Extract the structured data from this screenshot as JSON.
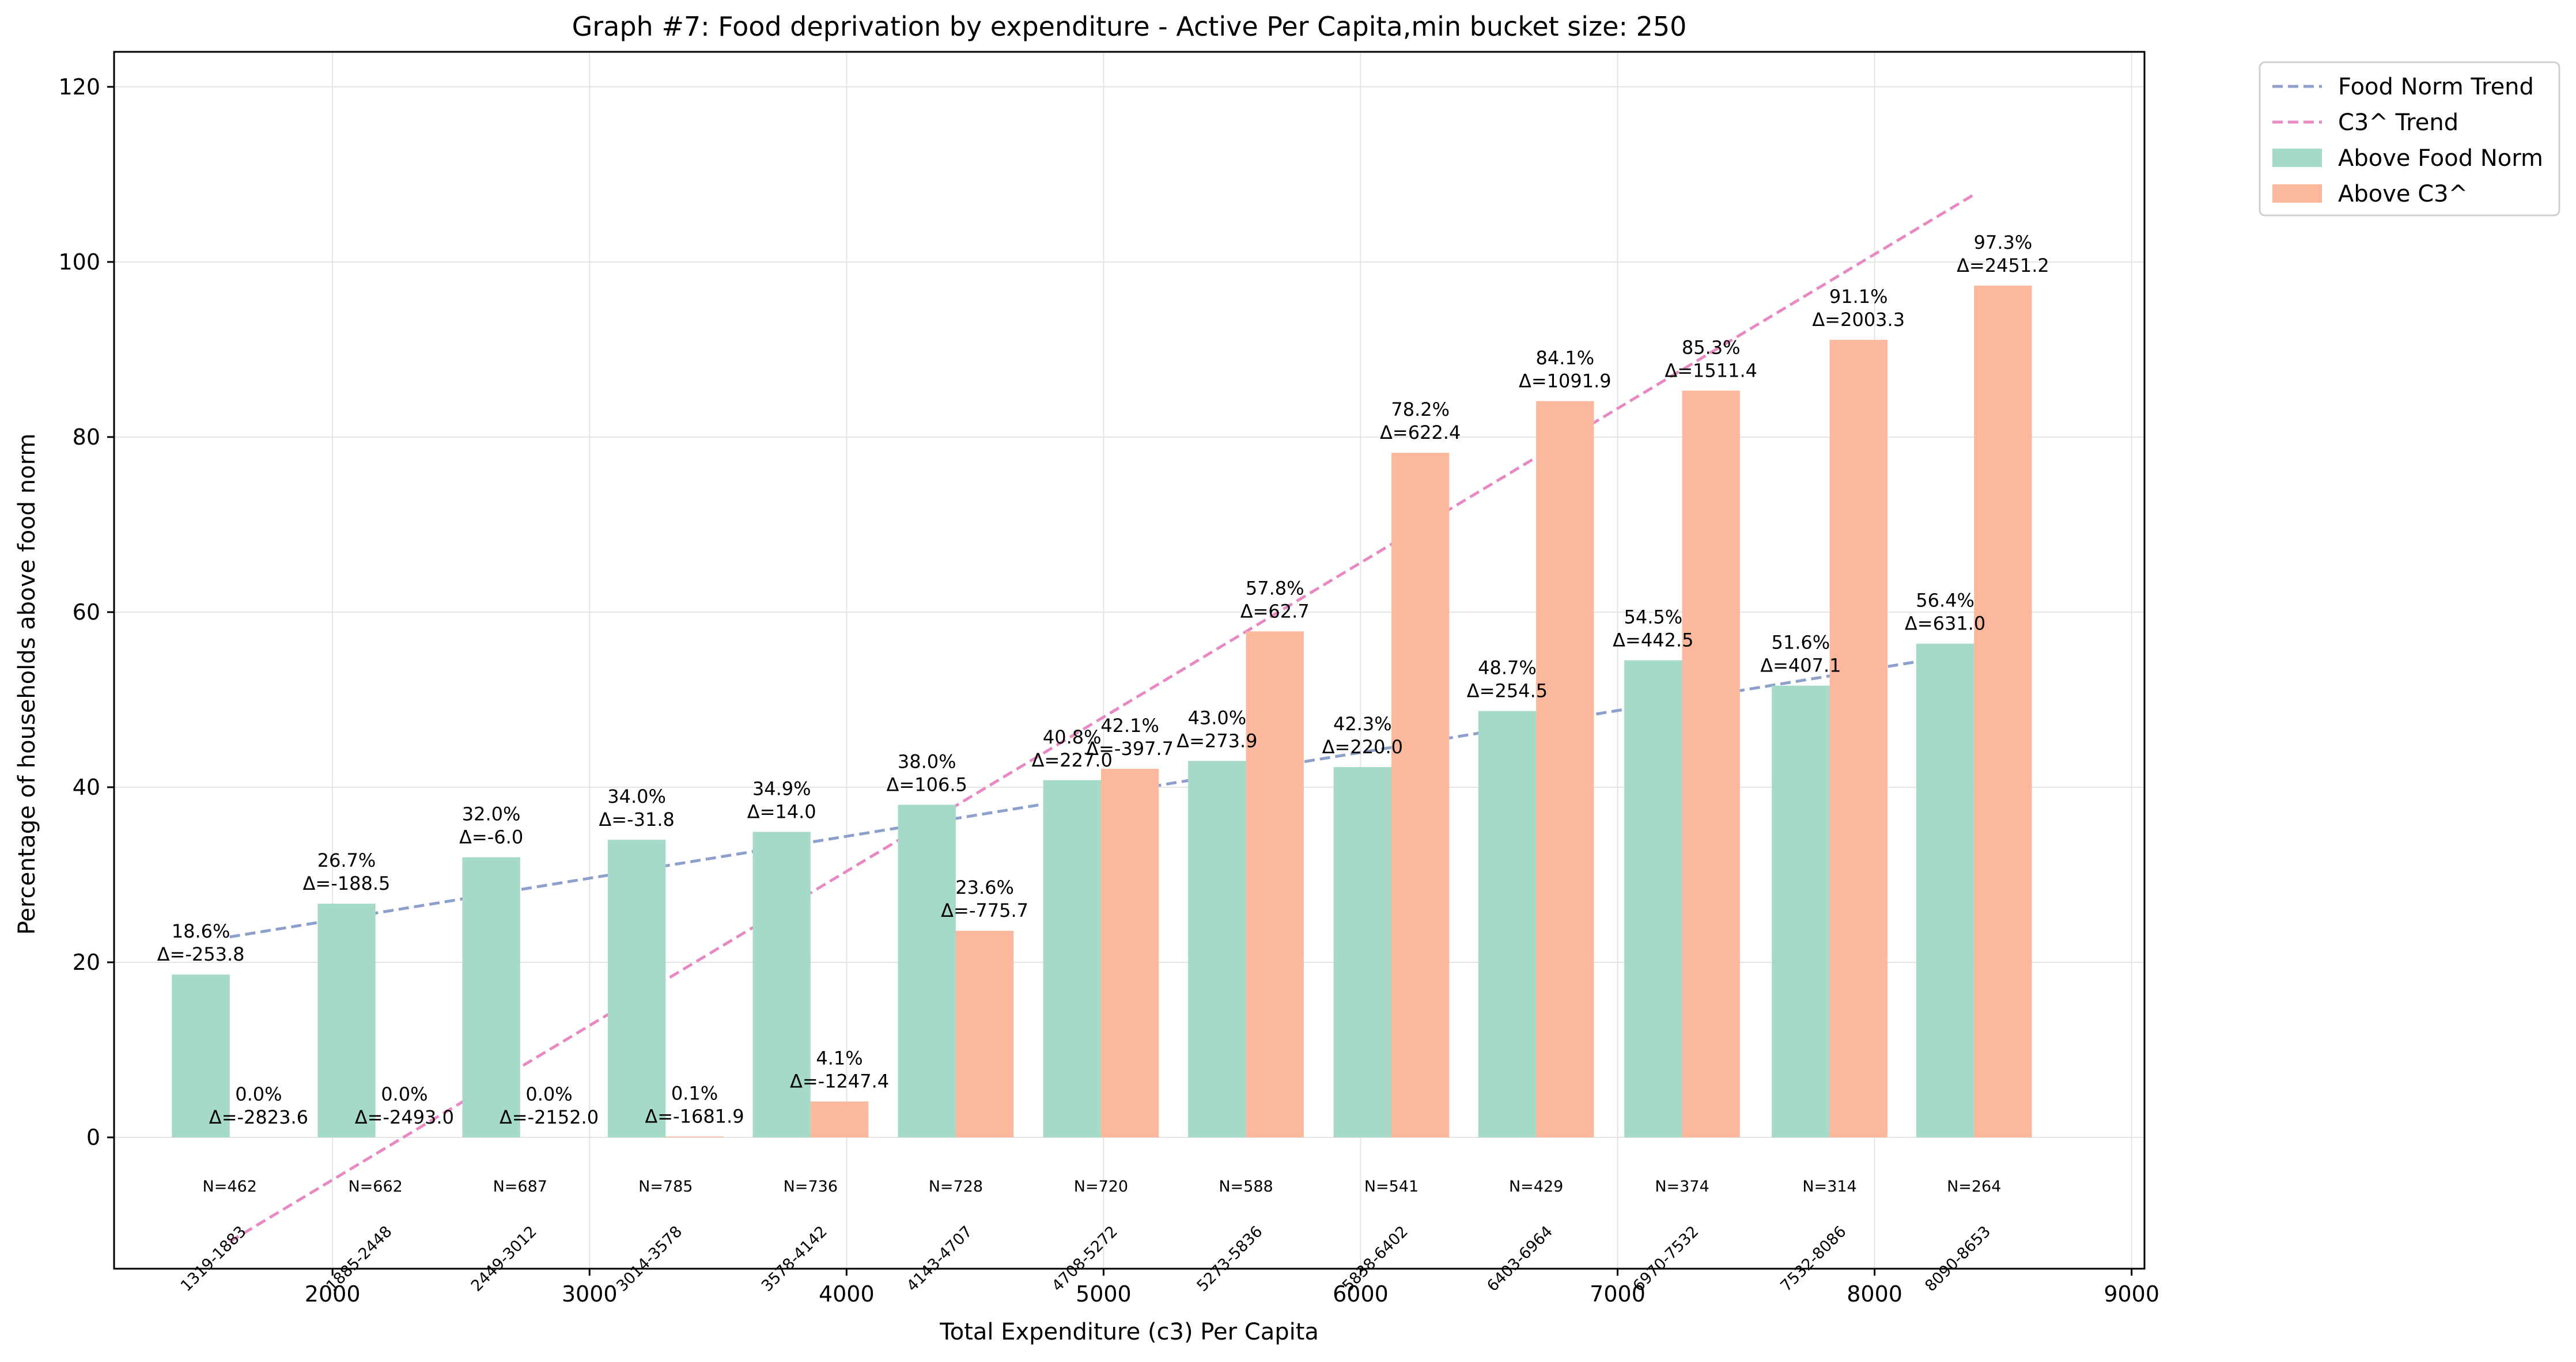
{
  "chart_data": {
    "type": "bar",
    "title": "Graph #7: Food deprivation by expenditure - Active Per Capita,min bucket size: 250",
    "xlabel": "Total Expenditure (c3) Per Capita",
    "ylabel": "Percentage of households above food norm",
    "xlim": [
      1150,
      9050
    ],
    "ylim": [
      -15,
      124
    ],
    "xticks": [
      2000,
      3000,
      4000,
      5000,
      6000,
      7000,
      8000,
      9000
    ],
    "yticks": [
      0,
      20,
      40,
      60,
      80,
      100,
      120
    ],
    "grid": true,
    "legend_position": "outside-top-right",
    "bar_half_width": 225,
    "bar_gap": 0,
    "buckets": [
      {
        "x": 1600,
        "range": "1319-1883",
        "n": "N=462",
        "food": 18.6,
        "food_delta": "Δ=-253.8",
        "c3": 0.0,
        "c3_delta": "Δ=-2823.6"
      },
      {
        "x": 2167,
        "range": "1885-2448",
        "n": "N=662",
        "food": 26.7,
        "food_delta": "Δ=-188.5",
        "c3": 0.0,
        "c3_delta": "Δ=-2493.0"
      },
      {
        "x": 2730,
        "range": "2449-3012",
        "n": "N=687",
        "food": 32.0,
        "food_delta": "Δ=-6.0",
        "c3": 0.0,
        "c3_delta": "Δ=-2152.0"
      },
      {
        "x": 3296,
        "range": "3014-3578",
        "n": "N=785",
        "food": 34.0,
        "food_delta": "Δ=-31.8",
        "c3": 0.1,
        "c3_delta": "Δ=-1681.9"
      },
      {
        "x": 3860,
        "range": "3578-4142",
        "n": "N=736",
        "food": 34.9,
        "food_delta": "Δ=14.0",
        "c3": 4.1,
        "c3_delta": "Δ=-1247.4"
      },
      {
        "x": 4425,
        "range": "4143-4707",
        "n": "N=728",
        "food": 38.0,
        "food_delta": "Δ=106.5",
        "c3": 23.6,
        "c3_delta": "Δ=-775.7"
      },
      {
        "x": 4990,
        "range": "4708-5272",
        "n": "N=720",
        "food": 40.8,
        "food_delta": "Δ=227.0",
        "c3": 42.1,
        "c3_delta": "Δ=-397.7"
      },
      {
        "x": 5554,
        "range": "5273-5836",
        "n": "N=588",
        "food": 43.0,
        "food_delta": "Δ=273.9",
        "c3": 57.8,
        "c3_delta": "Δ=62.7"
      },
      {
        "x": 6120,
        "range": "5838-6402",
        "n": "N=541",
        "food": 42.3,
        "food_delta": "Δ=220.0",
        "c3": 78.2,
        "c3_delta": "Δ=622.4"
      },
      {
        "x": 6683,
        "range": "6403-6964",
        "n": "N=429",
        "food": 48.7,
        "food_delta": "Δ=254.5",
        "c3": 84.1,
        "c3_delta": "Δ=1091.9"
      },
      {
        "x": 7251,
        "range": "6970-7532",
        "n": "N=374",
        "food": 54.5,
        "food_delta": "Δ=442.5",
        "c3": 85.3,
        "c3_delta": "Δ=1511.4"
      },
      {
        "x": 7825,
        "range": "7532-8086",
        "n": "N=314",
        "food": 51.6,
        "food_delta": "Δ=407.1",
        "c3": 91.1,
        "c3_delta": "Δ=2003.3"
      },
      {
        "x": 8387,
        "range": "8090-8653",
        "n": "N=264",
        "food": 56.4,
        "food_delta": "Δ=631.0",
        "c3": 97.3,
        "c3_delta": "Δ=2451.2"
      }
    ],
    "series": [
      {
        "name": "Above Food Norm",
        "key": "food",
        "color": "#a5d9c8"
      },
      {
        "name": "Above C3^",
        "key": "c3",
        "color": "#fcb89c"
      }
    ],
    "trend_lines": [
      {
        "name": "Food Norm Trend",
        "color": "#8da0cb",
        "x": [
          1600,
          8387
        ],
        "y": [
          22.9,
          55.4
        ]
      },
      {
        "name": "C3^ Trend",
        "color": "#e78ac3",
        "x": [
          1600,
          8387
        ],
        "y": [
          -11.9,
          107.7
        ]
      }
    ],
    "legend": {
      "entries": [
        {
          "label": "Food Norm Trend",
          "kind": "line",
          "color": "#8da0cb"
        },
        {
          "label": "C3^ Trend",
          "kind": "line",
          "color": "#e78ac3"
        },
        {
          "label": "Above Food Norm",
          "kind": "patch",
          "color": "#a5d9c8"
        },
        {
          "label": "Above C3^",
          "kind": "patch",
          "color": "#fcb89c"
        }
      ]
    }
  }
}
